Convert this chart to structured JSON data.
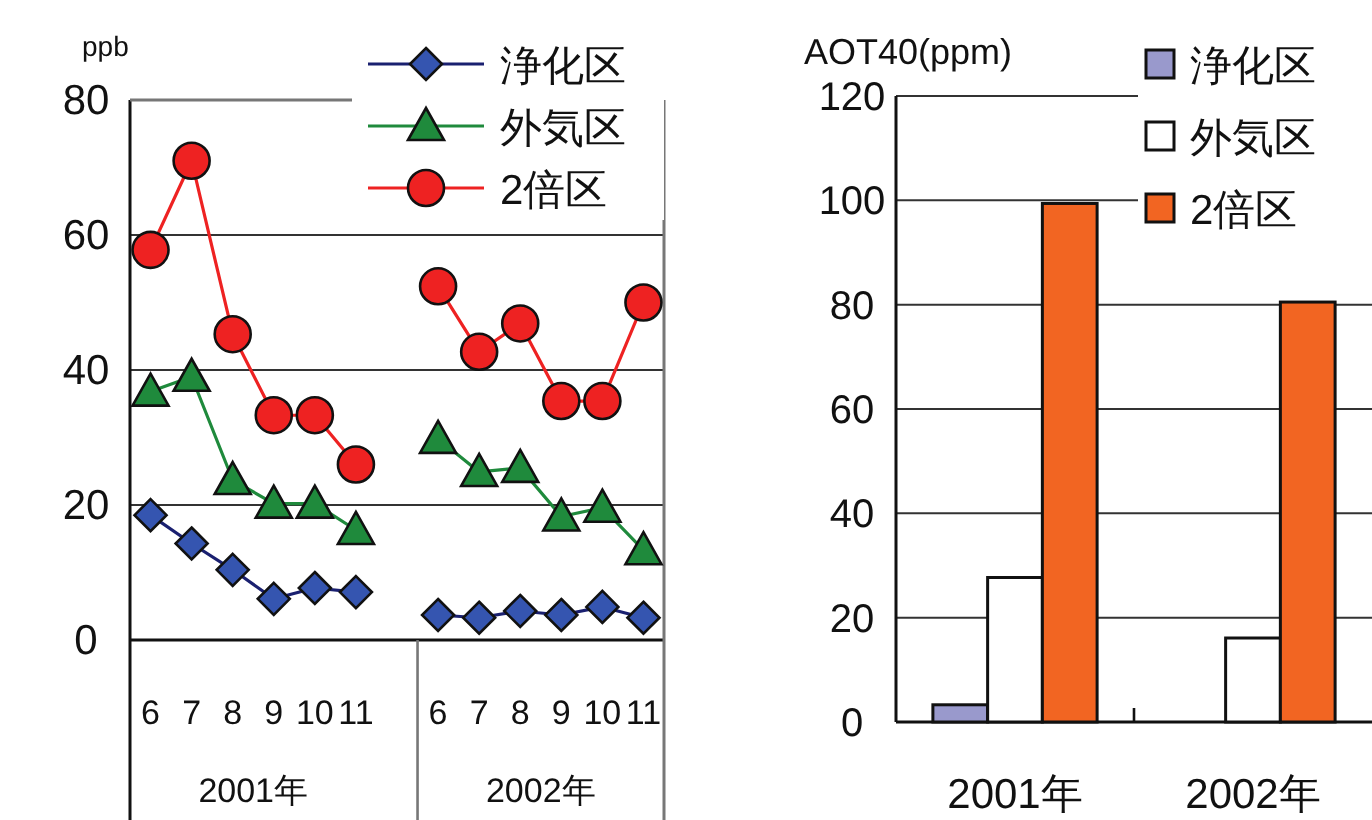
{
  "chart_data": [
    {
      "type": "line",
      "ylabel": "ppb",
      "categories": [
        "6",
        "7",
        "8",
        "9",
        "10",
        "11",
        null,
        "6",
        "7",
        "8",
        "9",
        "10",
        "11"
      ],
      "series": [
        {
          "name": "浄化区",
          "color": "#1a2070",
          "marker": "diamond",
          "values": [
            18.5,
            14.3,
            10.4,
            6.1,
            7.7,
            7.1,
            null,
            3.7,
            3.3,
            4.3,
            3.7,
            4.9,
            3.3
          ]
        },
        {
          "name": "外気区",
          "color": "#1f8a3c",
          "marker": "triangle",
          "values": [
            36.8,
            39,
            23.7,
            20.2,
            20.2,
            16.3,
            null,
            29.8,
            24.9,
            25.5,
            18.3,
            19.6,
            13.3
          ]
        },
        {
          "name": "2倍区",
          "color": "#ee2222",
          "marker": "circle",
          "values": [
            57.8,
            71,
            45.3,
            33.3,
            33.3,
            26,
            null,
            52.4,
            42.7,
            46.9,
            35.4,
            35.4,
            50
          ]
        }
      ],
      "ylim": [
        0,
        80
      ],
      "yticks": [
        0,
        20,
        40,
        60,
        80
      ],
      "grid": "y",
      "legend": "top right",
      "annotations": [
        "2001年",
        "2002年"
      ]
    },
    {
      "type": "bar",
      "ylabel": "AOT40(ppm)",
      "categories": [
        "2001年",
        "2002年"
      ],
      "series": [
        {
          "name": "浄化区",
          "color": "#9999cc",
          "values": [
            3.3,
            0
          ]
        },
        {
          "name": "外気区",
          "color": "#ffffff",
          "values": [
            27.7,
            16.1
          ]
        },
        {
          "name": "2倍区",
          "color": "#f26522",
          "values": [
            99.4,
            80.5
          ]
        }
      ],
      "ylim": [
        0,
        120
      ],
      "yticks": [
        0,
        20,
        40,
        60,
        80,
        100,
        120
      ],
      "grid": "y",
      "legend": "top right"
    }
  ]
}
